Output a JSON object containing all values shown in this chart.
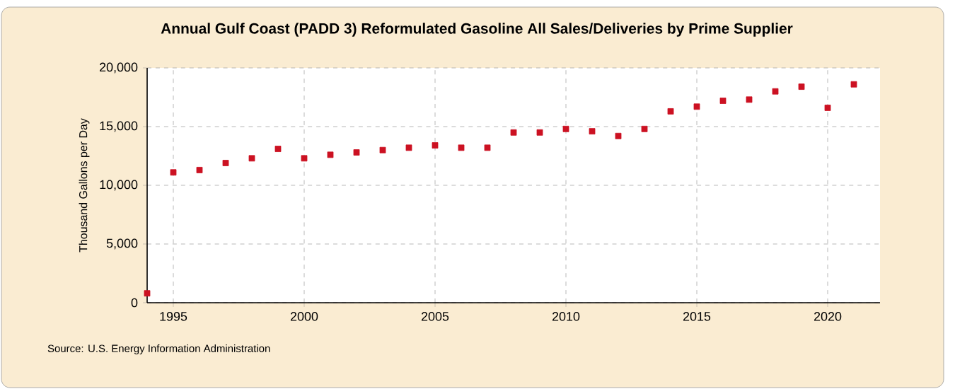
{
  "chart_data": {
    "type": "scatter",
    "title": "Annual Gulf Coast (PADD 3) Reformulated Gasoline All Sales/Deliveries by Prime Supplier",
    "ylabel": "Thousand Gallons per Day",
    "annotations": [
      "Source: U.S. Energy Information Administration"
    ],
    "x": [
      1994,
      1995,
      1996,
      1997,
      1998,
      1999,
      2000,
      2001,
      2002,
      2003,
      2004,
      2005,
      2006,
      2007,
      2008,
      2009,
      2010,
      2011,
      2012,
      2013,
      2014,
      2015,
      2016,
      2017,
      2018,
      2019,
      2020,
      2021
    ],
    "series": [
      {
        "color": "#cc1122",
        "values": [
          800,
          11100,
          11300,
          11900,
          12300,
          13100,
          12300,
          12600,
          12800,
          13000,
          13200,
          13400,
          13200,
          13200,
          14500,
          14500,
          14800,
          14600,
          14200,
          14800,
          16300,
          16700,
          17200,
          17300,
          18000,
          18400,
          16600,
          18600
        ]
      }
    ],
    "xlim": [
      1994,
      2022
    ],
    "xticks": [
      1995,
      2000,
      2005,
      2010,
      2015,
      2020
    ],
    "ylim": [
      0,
      20000
    ],
    "yticks": [
      {
        "value": 0,
        "label": "0"
      },
      {
        "value": 5000,
        "label": "5,000"
      },
      {
        "value": 10000,
        "label": "10,000"
      },
      {
        "value": 15000,
        "label": "15,000"
      },
      {
        "value": 20000,
        "label": "20,000"
      }
    ],
    "grid": true,
    "marker": "square"
  }
}
